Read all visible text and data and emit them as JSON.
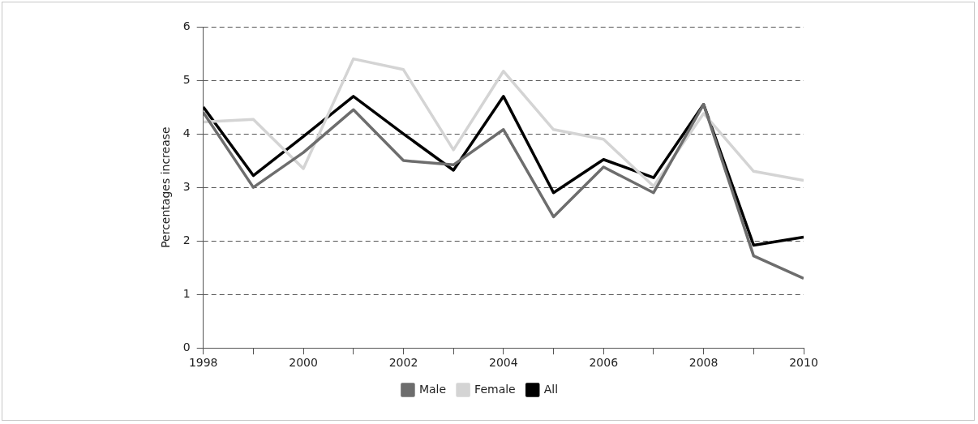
{
  "chart_data": {
    "type": "line",
    "ylabel": "Percentages increase",
    "x": [
      1998,
      1999,
      2000,
      2001,
      2002,
      2003,
      2004,
      2005,
      2006,
      2007,
      2008,
      2009,
      2010
    ],
    "xlim": [
      1998,
      2010
    ],
    "xticks": [
      1998,
      {
        "value": 1999,
        "label": null
      },
      2000,
      {
        "value": 2001,
        "label": null
      },
      2002,
      {
        "value": 2003,
        "label": null
      },
      2004,
      {
        "value": 2005,
        "label": null
      },
      2006,
      {
        "value": 2007,
        "label": null
      },
      2008,
      {
        "value": 2009,
        "label": null
      },
      2010
    ],
    "ylim": [
      0,
      6
    ],
    "yticks": [
      0,
      1,
      2,
      3,
      4,
      5,
      6
    ],
    "grid": "y",
    "legend": "bottom",
    "marker": "none",
    "line_style": "solid",
    "series": [
      {
        "name": "Male",
        "color": "#6d6d6d",
        "values": [
          4.4,
          3.0,
          3.65,
          4.45,
          3.5,
          3.42,
          4.08,
          2.45,
          3.38,
          2.9,
          4.55,
          1.72,
          1.3
        ]
      },
      {
        "name": "Female",
        "color": "#d4d4d4",
        "values": [
          4.22,
          4.27,
          3.35,
          5.4,
          5.2,
          3.7,
          5.17,
          4.08,
          3.9,
          3.02,
          4.38,
          3.3,
          3.13
        ]
      },
      {
        "name": "All",
        "color": "#000000",
        "values": [
          4.5,
          3.22,
          3.95,
          4.7,
          4.0,
          3.32,
          4.7,
          2.9,
          3.52,
          3.18,
          4.55,
          1.92,
          2.07
        ]
      }
    ]
  }
}
